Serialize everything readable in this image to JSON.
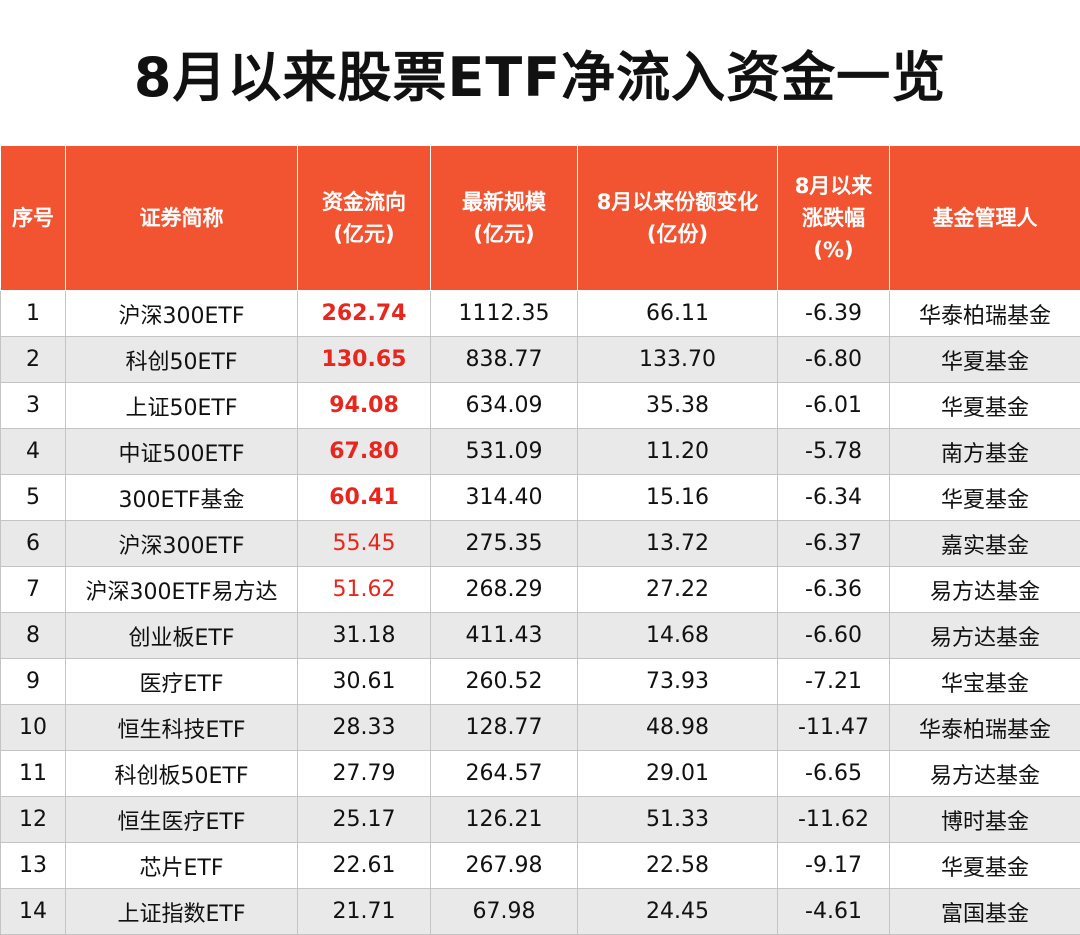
{
  "title": "8月以来股票ETF净流入资金一览",
  "columns": [
    [
      "序号"
    ],
    [
      "证券简称"
    ],
    [
      "资金流向",
      "(亿元)"
    ],
    [
      "最新规模",
      "(亿元)"
    ],
    [
      "8月以来份额变化",
      "(亿份)"
    ],
    [
      "8月以来",
      "涨跌幅",
      "(%)"
    ],
    [
      "基金管理人"
    ]
  ],
  "rows": [
    [
      "1",
      "沪深300ETF",
      "262.74",
      "1112.35",
      "66.11",
      "-6.39",
      "华泰柏瑞基金"
    ],
    [
      "2",
      "科创50ETF",
      "130.65",
      "838.77",
      "133.70",
      "-6.80",
      "华夏基金"
    ],
    [
      "3",
      "上证50ETF",
      "94.08",
      "634.09",
      "35.38",
      "-6.01",
      "华夏基金"
    ],
    [
      "4",
      "中证500ETF",
      "67.80",
      "531.09",
      "11.20",
      "-5.78",
      "南方基金"
    ],
    [
      "5",
      "300ETF基金",
      "60.41",
      "314.40",
      "15.16",
      "-6.34",
      "华夏基金"
    ],
    [
      "6",
      "沪深300ETF",
      "55.45",
      "275.35",
      "13.72",
      "-6.37",
      "嘉实基金"
    ],
    [
      "7",
      "沪深300ETF易方达",
      "51.62",
      "268.29",
      "27.22",
      "-6.36",
      "易方达基金"
    ],
    [
      "8",
      "创业板ETF",
      "31.18",
      "411.43",
      "14.68",
      "-6.60",
      "易方达基金"
    ],
    [
      "9",
      "医疗ETF",
      "30.61",
      "260.52",
      "73.93",
      "-7.21",
      "华宝基金"
    ],
    [
      "10",
      "恒生科技ETF",
      "28.33",
      "128.77",
      "48.98",
      "-11.47",
      "华泰柏瑞基金"
    ],
    [
      "11",
      "科创板50ETF",
      "27.79",
      "264.57",
      "29.01",
      "-6.65",
      "易方达基金"
    ],
    [
      "12",
      "恒生医疗ETF",
      "25.17",
      "126.21",
      "51.33",
      "-11.62",
      "博时基金"
    ],
    [
      "13",
      "芯片ETF",
      "22.61",
      "267.98",
      "22.58",
      "-9.17",
      "华夏基金"
    ],
    [
      "14",
      "上证指数ETF",
      "21.71",
      "67.98",
      "24.45",
      "-4.61",
      "富国基金"
    ]
  ],
  "highlight": {
    "color": "#e8261d",
    "header_color": "#f25432",
    "bold_red_rows": [
      0,
      1,
      2,
      3,
      4
    ],
    "red_rows": [
      5,
      6
    ]
  }
}
